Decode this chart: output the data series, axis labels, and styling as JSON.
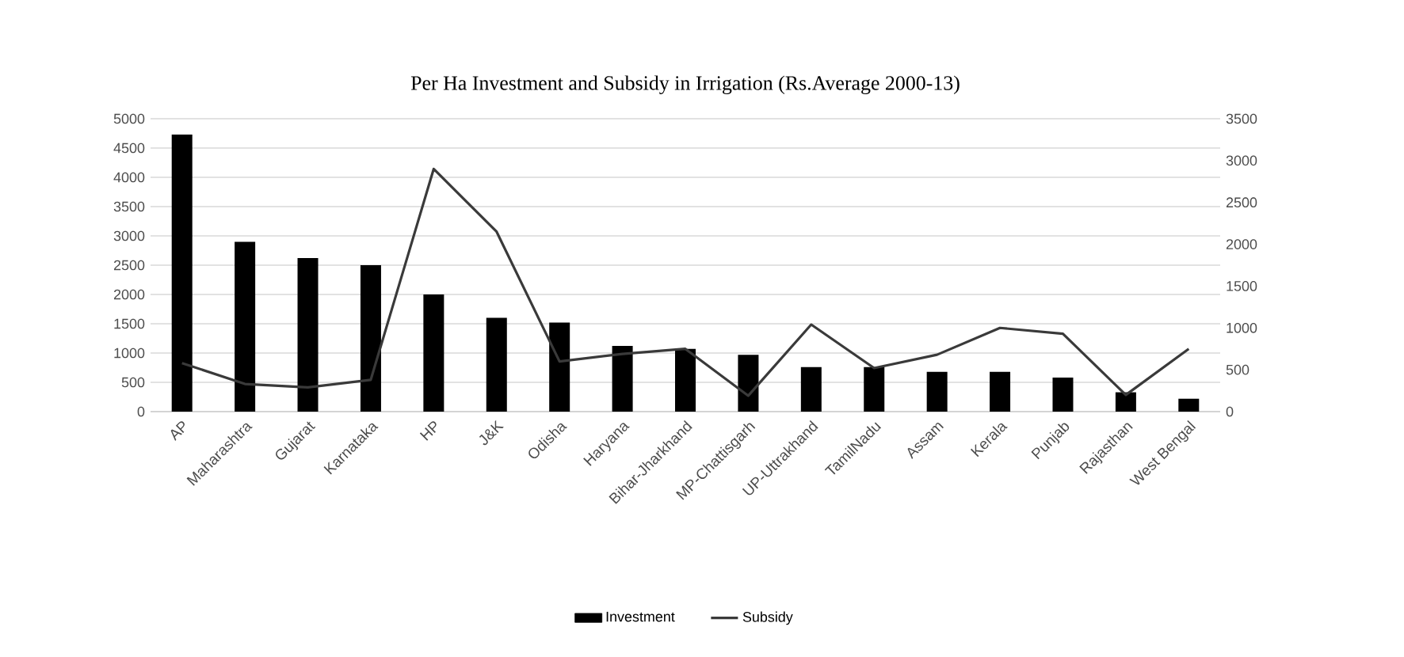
{
  "chart_data": {
    "type": "bar",
    "title": "Per Ha Investment and Subsidy in Irrigation (Rs.Average 2000-13)",
    "categories": [
      "AP",
      "Maharashtra",
      "Gujarat",
      "Karnataka",
      "HP",
      "J&K",
      "Odisha",
      "Haryana",
      "Bihar-Jharkhand",
      "MP-Chattisgarh",
      "UP-Uttrakhand",
      "TamilNadu",
      "Assam",
      "Kerala",
      "Punjab",
      "Rajasthan",
      "West Bengal"
    ],
    "series": [
      {
        "name": "Investment",
        "color": "#000000",
        "values": [
          4730,
          2900,
          2620,
          2500,
          2000,
          1600,
          1520,
          1120,
          1070,
          970,
          760,
          760,
          680,
          680,
          580,
          330,
          220
        ]
      },
      {
        "name": "Subsidy",
        "type": "line",
        "axis": "y2",
        "color": "#3a3a3a",
        "values": [
          580,
          330,
          290,
          380,
          2900,
          2150,
          600,
          690,
          750,
          190,
          1040,
          520,
          680,
          1000,
          930,
          200,
          750
        ]
      }
    ],
    "ylim": [
      0,
      5000
    ],
    "yticks": [
      0,
      500,
      1000,
      1500,
      2000,
      2500,
      3000,
      3500,
      4000,
      4500,
      5000
    ],
    "y2lim": [
      0,
      3500
    ],
    "y2ticks": [
      0,
      500,
      1000,
      1500,
      2000,
      2500,
      3000,
      3500
    ],
    "grid": "y",
    "legend": "bottom"
  }
}
